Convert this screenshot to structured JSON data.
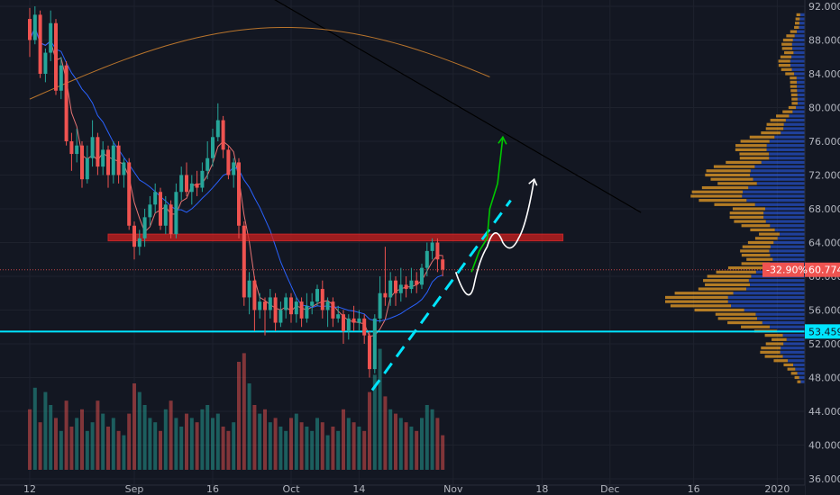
{
  "chart_data": {
    "type": "candlestick",
    "instrument_note": "",
    "y_axis": {
      "ticks": [
        "92.000",
        "88.000",
        "84.000",
        "80.000",
        "76.000",
        "72.000",
        "68.000",
        "64.000",
        "60.000",
        "56.000",
        "52.000",
        "48.000",
        "44.000",
        "40.000",
        "36.000"
      ],
      "min": 36,
      "max": 92
    },
    "x_axis": {
      "ticks": [
        {
          "label": "12",
          "day": 0
        },
        {
          "label": "Sep",
          "day": 20
        },
        {
          "label": "16",
          "day": 35
        },
        {
          "label": "Oct",
          "day": 50
        },
        {
          "label": "14",
          "day": 63
        },
        {
          "label": "Nov",
          "day": 81
        },
        {
          "label": "18",
          "day": 98
        },
        {
          "label": "Dec",
          "day": 111
        },
        {
          "label": "16",
          "day": 127
        },
        {
          "label": "2020",
          "day": 143
        }
      ]
    },
    "current_price": {
      "label": "60.774",
      "value": 60.774,
      "change_label": "-32.90%"
    },
    "support_level": {
      "label": "53.459",
      "value": 53.459
    },
    "resistance_zone": {
      "low": 64.2,
      "high": 65.0,
      "from_day": 15,
      "to_day": 102
    },
    "candles": [
      [
        90.5,
        88.0,
        91.8,
        86.0
      ],
      [
        88.0,
        91.0,
        92.0,
        87.5
      ],
      [
        91.0,
        84.0,
        91.5,
        83.5
      ],
      [
        84.0,
        86.5,
        87.0,
        83.0
      ],
      [
        86.5,
        90.0,
        91.5,
        85.5
      ],
      [
        90.0,
        82.0,
        90.5,
        81.5
      ],
      [
        82.0,
        85.0,
        86.0,
        81.0
      ],
      [
        85.0,
        76.0,
        85.5,
        75.5
      ],
      [
        76.0,
        74.5,
        77.0,
        72.5
      ],
      [
        74.5,
        75.5,
        77.5,
        73.5
      ],
      [
        75.5,
        71.5,
        76.0,
        70.5
      ],
      [
        71.5,
        74.0,
        75.5,
        71.0
      ],
      [
        74.0,
        76.5,
        78.5,
        73.0
      ],
      [
        76.5,
        73.0,
        77.0,
        72.0
      ],
      [
        73.0,
        75.0,
        76.0,
        72.0
      ],
      [
        75.0,
        72.0,
        75.5,
        70.5
      ],
      [
        72.0,
        75.5,
        76.0,
        71.0
      ],
      [
        75.5,
        72.0,
        76.0,
        71.0
      ],
      [
        72.0,
        73.5,
        74.0,
        70.5
      ],
      [
        73.5,
        66.0,
        74.0,
        65.5
      ],
      [
        66.0,
        63.5,
        66.5,
        62.0
      ],
      [
        63.5,
        64.5,
        65.5,
        62.5
      ],
      [
        64.5,
        67.0,
        68.0,
        63.5
      ],
      [
        67.0,
        68.5,
        69.5,
        66.0
      ],
      [
        68.5,
        70.0,
        71.0,
        67.5
      ],
      [
        70.0,
        66.0,
        70.5,
        65.5
      ],
      [
        66.0,
        68.5,
        69.5,
        65.0
      ],
      [
        68.5,
        65.0,
        69.0,
        64.5
      ],
      [
        65.0,
        70.0,
        71.0,
        64.5
      ],
      [
        70.0,
        72.0,
        73.0,
        69.0
      ],
      [
        72.0,
        70.0,
        73.5,
        69.5
      ],
      [
        70.0,
        71.0,
        72.0,
        68.5
      ],
      [
        71.0,
        70.5,
        72.5,
        69.5
      ],
      [
        70.5,
        72.5,
        73.5,
        70.0
      ],
      [
        72.5,
        74.0,
        76.0,
        71.5
      ],
      [
        74.0,
        76.5,
        77.5,
        73.0
      ],
      [
        76.5,
        78.5,
        80.5,
        76.0
      ],
      [
        78.5,
        75.0,
        79.0,
        74.0
      ],
      [
        75.0,
        72.0,
        75.5,
        71.5
      ],
      [
        72.0,
        73.5,
        74.0,
        70.5
      ],
      [
        73.5,
        66.0,
        74.0,
        64.5
      ],
      [
        66.0,
        57.5,
        66.5,
        56.5
      ],
      [
        57.5,
        59.5,
        60.5,
        55.5
      ],
      [
        59.5,
        56.0,
        60.0,
        53.5
      ],
      [
        56.0,
        57.0,
        58.0,
        55.0
      ],
      [
        57.0,
        56.0,
        57.5,
        53.0
      ],
      [
        56.0,
        57.5,
        58.5,
        55.0
      ],
      [
        57.5,
        54.5,
        58.0,
        53.5
      ],
      [
        54.5,
        56.0,
        57.0,
        54.0
      ],
      [
        56.0,
        57.5,
        58.0,
        55.0
      ],
      [
        57.5,
        55.5,
        58.0,
        54.5
      ],
      [
        55.5,
        57.0,
        57.5,
        54.5
      ],
      [
        57.0,
        55.0,
        57.5,
        54.0
      ],
      [
        55.0,
        56.5,
        58.0,
        54.5
      ],
      [
        56.5,
        57.0,
        58.0,
        55.5
      ],
      [
        57.0,
        58.5,
        59.0,
        56.5
      ],
      [
        58.5,
        56.0,
        59.5,
        55.0
      ],
      [
        56.0,
        57.0,
        57.5,
        54.0
      ],
      [
        57.0,
        55.0,
        57.5,
        54.0
      ],
      [
        55.0,
        55.5,
        56.5,
        54.5
      ],
      [
        55.5,
        53.5,
        56.0,
        52.0
      ],
      [
        53.5,
        55.0,
        55.5,
        52.5
      ],
      [
        55.0,
        54.5,
        56.5,
        53.5
      ],
      [
        54.5,
        55.0,
        56.0,
        53.5
      ],
      [
        55.0,
        53.0,
        55.5,
        52.0
      ],
      [
        53.0,
        49.0,
        53.5,
        48.0
      ],
      [
        49.0,
        55.0,
        55.5,
        48.5
      ],
      [
        55.0,
        58.0,
        60.0,
        54.5
      ],
      [
        58.0,
        57.5,
        63.5,
        56.5
      ],
      [
        57.5,
        59.5,
        60.5,
        56.5
      ],
      [
        59.5,
        58.0,
        60.0,
        56.5
      ],
      [
        58.0,
        59.0,
        61.0,
        57.0
      ],
      [
        59.0,
        58.5,
        60.0,
        57.5
      ],
      [
        58.5,
        59.5,
        61.0,
        58.0
      ],
      [
        59.5,
        59.0,
        60.5,
        58.0
      ],
      [
        59.0,
        61.0,
        61.5,
        58.5
      ],
      [
        61.0,
        63.0,
        64.0,
        60.0
      ],
      [
        63.0,
        64.0,
        64.5,
        62.0
      ],
      [
        64.0,
        62.0,
        64.5,
        60.5
      ],
      [
        62.0,
        60.8,
        62.5,
        60.0
      ]
    ],
    "volumes": [
      14,
      19,
      11,
      18,
      15,
      12,
      9,
      16,
      10,
      12,
      14,
      9,
      11,
      16,
      13,
      10,
      12,
      9,
      8,
      13,
      20,
      18,
      15,
      12,
      11,
      9,
      14,
      16,
      12,
      10,
      13,
      12,
      11,
      14,
      15,
      12,
      13,
      10,
      9,
      11,
      25,
      27,
      20,
      15,
      13,
      14,
      11,
      12,
      10,
      9,
      12,
      13,
      11,
      10,
      9,
      12,
      11,
      8,
      10,
      9,
      14,
      12,
      11,
      10,
      9,
      18,
      22,
      28,
      17,
      14,
      13,
      12,
      11,
      10,
      9,
      12,
      15,
      14,
      12,
      8
    ],
    "moving_averages": [
      {
        "color": "#e57373",
        "note": "fast MA"
      },
      {
        "color": "#2962ff",
        "note": "medium MA"
      },
      {
        "color": "#000000",
        "note": "slow MA"
      },
      {
        "color": "#b8742c",
        "note": "long MA"
      }
    ],
    "colors": {
      "up": "#26a69a",
      "down": "#ef5350",
      "background": "#131722",
      "support": "#00e5ff",
      "resistance": "#cc1f1f",
      "projection_green": "#00c800",
      "projection_white": "#ffffff"
    }
  }
}
